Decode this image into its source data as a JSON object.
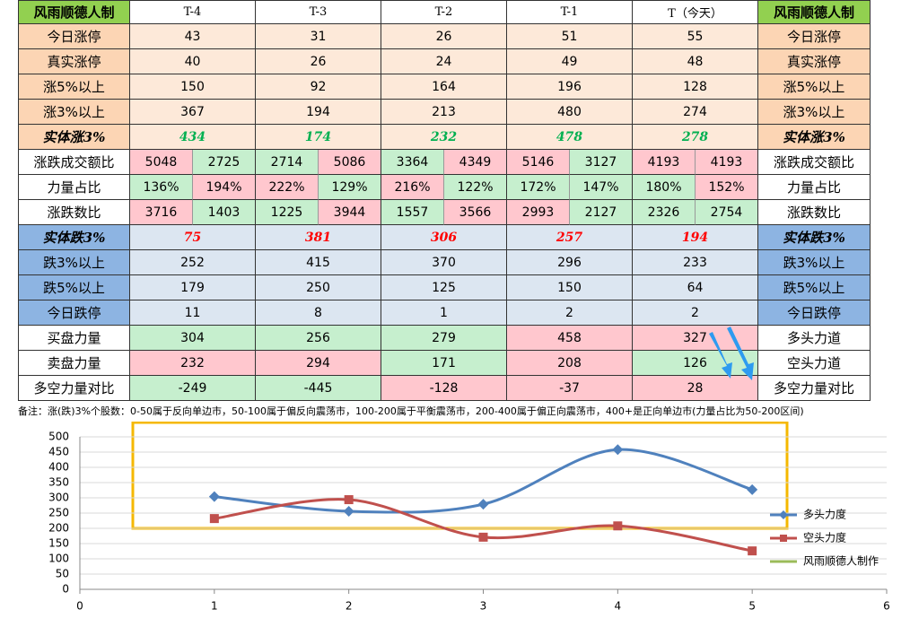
{
  "table": {
    "header": [
      "风雨顺德人制",
      "T-4",
      "T-3",
      "T-2",
      "T-1",
      "T（今天）",
      "风雨顺德人制"
    ],
    "rows": [
      {
        "label": "今日涨停",
        "cells": [
          43,
          31,
          26,
          51,
          55
        ],
        "right": "今日涨停"
      },
      {
        "label": "真实涨停",
        "cells": [
          40,
          26,
          24,
          49,
          48
        ],
        "right": "真实涨停"
      },
      {
        "label": "涨5%以上",
        "cells": [
          150,
          92,
          164,
          196,
          128
        ],
        "right": "涨5%以上"
      },
      {
        "label": "涨3%以上",
        "cells": [
          367,
          194,
          213,
          480,
          274
        ],
        "right": "涨3%以上"
      },
      {
        "label": "实体涨3%",
        "cells": [
          434,
          174,
          232,
          478,
          278
        ],
        "right": "实体涨3%"
      },
      {
        "label": "涨跌成交额比",
        "cells": [
          5048,
          2725,
          2714,
          5086,
          3364,
          4349,
          5146,
          3127,
          4193,
          4193
        ],
        "right": "涨跌成交额比",
        "colors": [
          "#ffc7ce",
          "#c6efce",
          "#c6efce",
          "#ffc7ce",
          "#c6efce",
          "#ffc7ce",
          "#ffc7ce",
          "#c6efce",
          "#ffc7ce",
          "#ffc7ce"
        ]
      },
      {
        "label": "力量占比",
        "cells": [
          "136%",
          "194%",
          "222%",
          "129%",
          "216%",
          "122%",
          "172%",
          "147%",
          "180%",
          "152%"
        ],
        "right": "力量占比",
        "colors": [
          "#c6efce",
          "#ffc7ce",
          "#ffc7ce",
          "#c6efce",
          "#ffc7ce",
          "#c6efce",
          "#c6efce",
          "#c6efce",
          "#c6efce",
          "#ffc7ce"
        ]
      },
      {
        "label": "涨跌数比",
        "cells": [
          3716,
          1403,
          1225,
          3944,
          1557,
          3566,
          2993,
          2127,
          2326,
          2754
        ],
        "right": "涨跌数比",
        "colors": [
          "#ffc7ce",
          "#c6efce",
          "#c6efce",
          "#ffc7ce",
          "#c6efce",
          "#ffc7ce",
          "#ffc7ce",
          "#c6efce",
          "#c6efce",
          "#c6efce"
        ]
      },
      {
        "label": "实体跌3%",
        "cells": [
          75,
          381,
          306,
          257,
          194
        ],
        "right": "实体跌3%"
      },
      {
        "label": "跌3%以上",
        "cells": [
          252,
          415,
          370,
          296,
          233
        ],
        "right": "跌3%以上"
      },
      {
        "label": "跌5%以上",
        "cells": [
          179,
          250,
          125,
          150,
          64
        ],
        "right": "跌5%以上"
      },
      {
        "label": "今日跌停",
        "cells": [
          11,
          8,
          1,
          2,
          2
        ],
        "right": "今日跌停"
      },
      {
        "label": "买盘力量",
        "cells": [
          304,
          256,
          279,
          458,
          327
        ],
        "right": "多头力道",
        "colors": [
          "#c6efce",
          "#c6efce",
          "#c6efce",
          "#ffc7ce",
          "#ffc7ce"
        ]
      },
      {
        "label": "卖盘力量",
        "cells": [
          232,
          294,
          171,
          208,
          126
        ],
        "right": "空头力道",
        "colors": [
          "#ffc7ce",
          "#ffc7ce",
          "#c6efce",
          "#ffc7ce",
          "#c6efce"
        ]
      },
      {
        "label": "多空力量对比",
        "cells": [
          -249,
          -445,
          -128,
          -37,
          28
        ],
        "right": "多空力量对比",
        "colors": [
          "#c6efce",
          "#c6efce",
          "#ffc7ce",
          "#ffc7ce",
          "#ffc7ce"
        ]
      }
    ]
  },
  "note": "备注：涨(跌)3%个股数：0-50属于反向单边市，50-100属于偏反向震荡市，100-200属于平衡震荡市，200-400属于偏正向震荡市，400+是正向单边市(力量占比为50-200区间)",
  "chart_data": {
    "type": "line",
    "x": [
      1,
      2,
      3,
      4,
      5
    ],
    "series": [
      {
        "name": "多头力度",
        "color": "#4f81bd",
        "values": [
          304,
          256,
          279,
          458,
          327
        ]
      },
      {
        "name": "空头力度",
        "color": "#c0504d",
        "values": [
          232,
          294,
          171,
          208,
          126
        ]
      },
      {
        "name": "风雨顺德人制作",
        "color": "#9bbb59",
        "values": [
          null,
          null,
          null,
          null,
          null
        ]
      }
    ],
    "xlim": [
      0,
      6
    ],
    "xticks": [
      0,
      1,
      2,
      3,
      4,
      5,
      6
    ],
    "ylim": [
      0,
      500
    ],
    "yticks": [
      0,
      50,
      100,
      150,
      200,
      250,
      300,
      350,
      400,
      450,
      500
    ],
    "grid": true,
    "legend": "right"
  }
}
